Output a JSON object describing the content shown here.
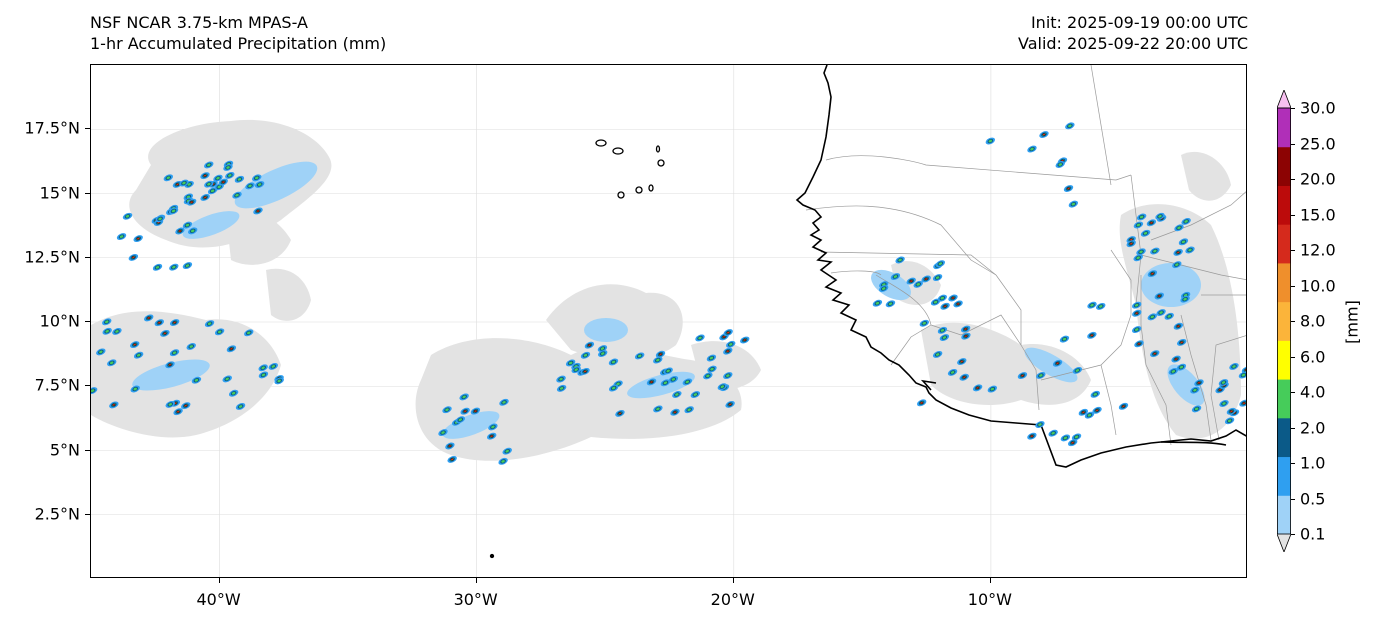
{
  "header": {
    "model": "NSF NCAR 3.75-km MPAS-A",
    "field": "1-hr Accumulated Precipitation (mm)",
    "init": "Init: 2025-09-19 00:00 UTC",
    "valid": "Valid: 2025-09-22 20:00 UTC"
  },
  "map": {
    "lon_range": [
      -45,
      0
    ],
    "lat_range": [
      0,
      20
    ],
    "lat_ticks": [
      {
        "value": 2.5,
        "label": "2.5°N"
      },
      {
        "value": 5,
        "label": "5°N"
      },
      {
        "value": 7.5,
        "label": "7.5°N"
      },
      {
        "value": 10,
        "label": "10°N"
      },
      {
        "value": 12.5,
        "label": "12.5°N"
      },
      {
        "value": 15,
        "label": "15°N"
      },
      {
        "value": 17.5,
        "label": "17.5°N"
      }
    ],
    "lon_ticks": [
      {
        "value": -40,
        "label": "40°W"
      },
      {
        "value": -30,
        "label": "30°W"
      },
      {
        "value": -20,
        "label": "20°W"
      },
      {
        "value": -10,
        "label": "10°W"
      }
    ],
    "gridlines": true,
    "coastline_color": "#000000",
    "border_color": "#9a9a9a"
  },
  "colorbar": {
    "unit": "[mm]",
    "levels": [
      "0.1",
      "0.5",
      "1.0",
      "2.0",
      "4.0",
      "6.0",
      "8.0",
      "10.0",
      "12.0",
      "15.0",
      "20.0",
      "25.0",
      "30.0"
    ],
    "colors": [
      "#e3e3e3",
      "#9fd2f7",
      "#2f9ff0",
      "#0b5a88",
      "#46cc5a",
      "#ffff00",
      "#fbb43a",
      "#ef8f2c",
      "#d52a1c",
      "#bc0b0b",
      "#8c0303",
      "#b02fb8",
      "#f7c0f0"
    ]
  }
}
